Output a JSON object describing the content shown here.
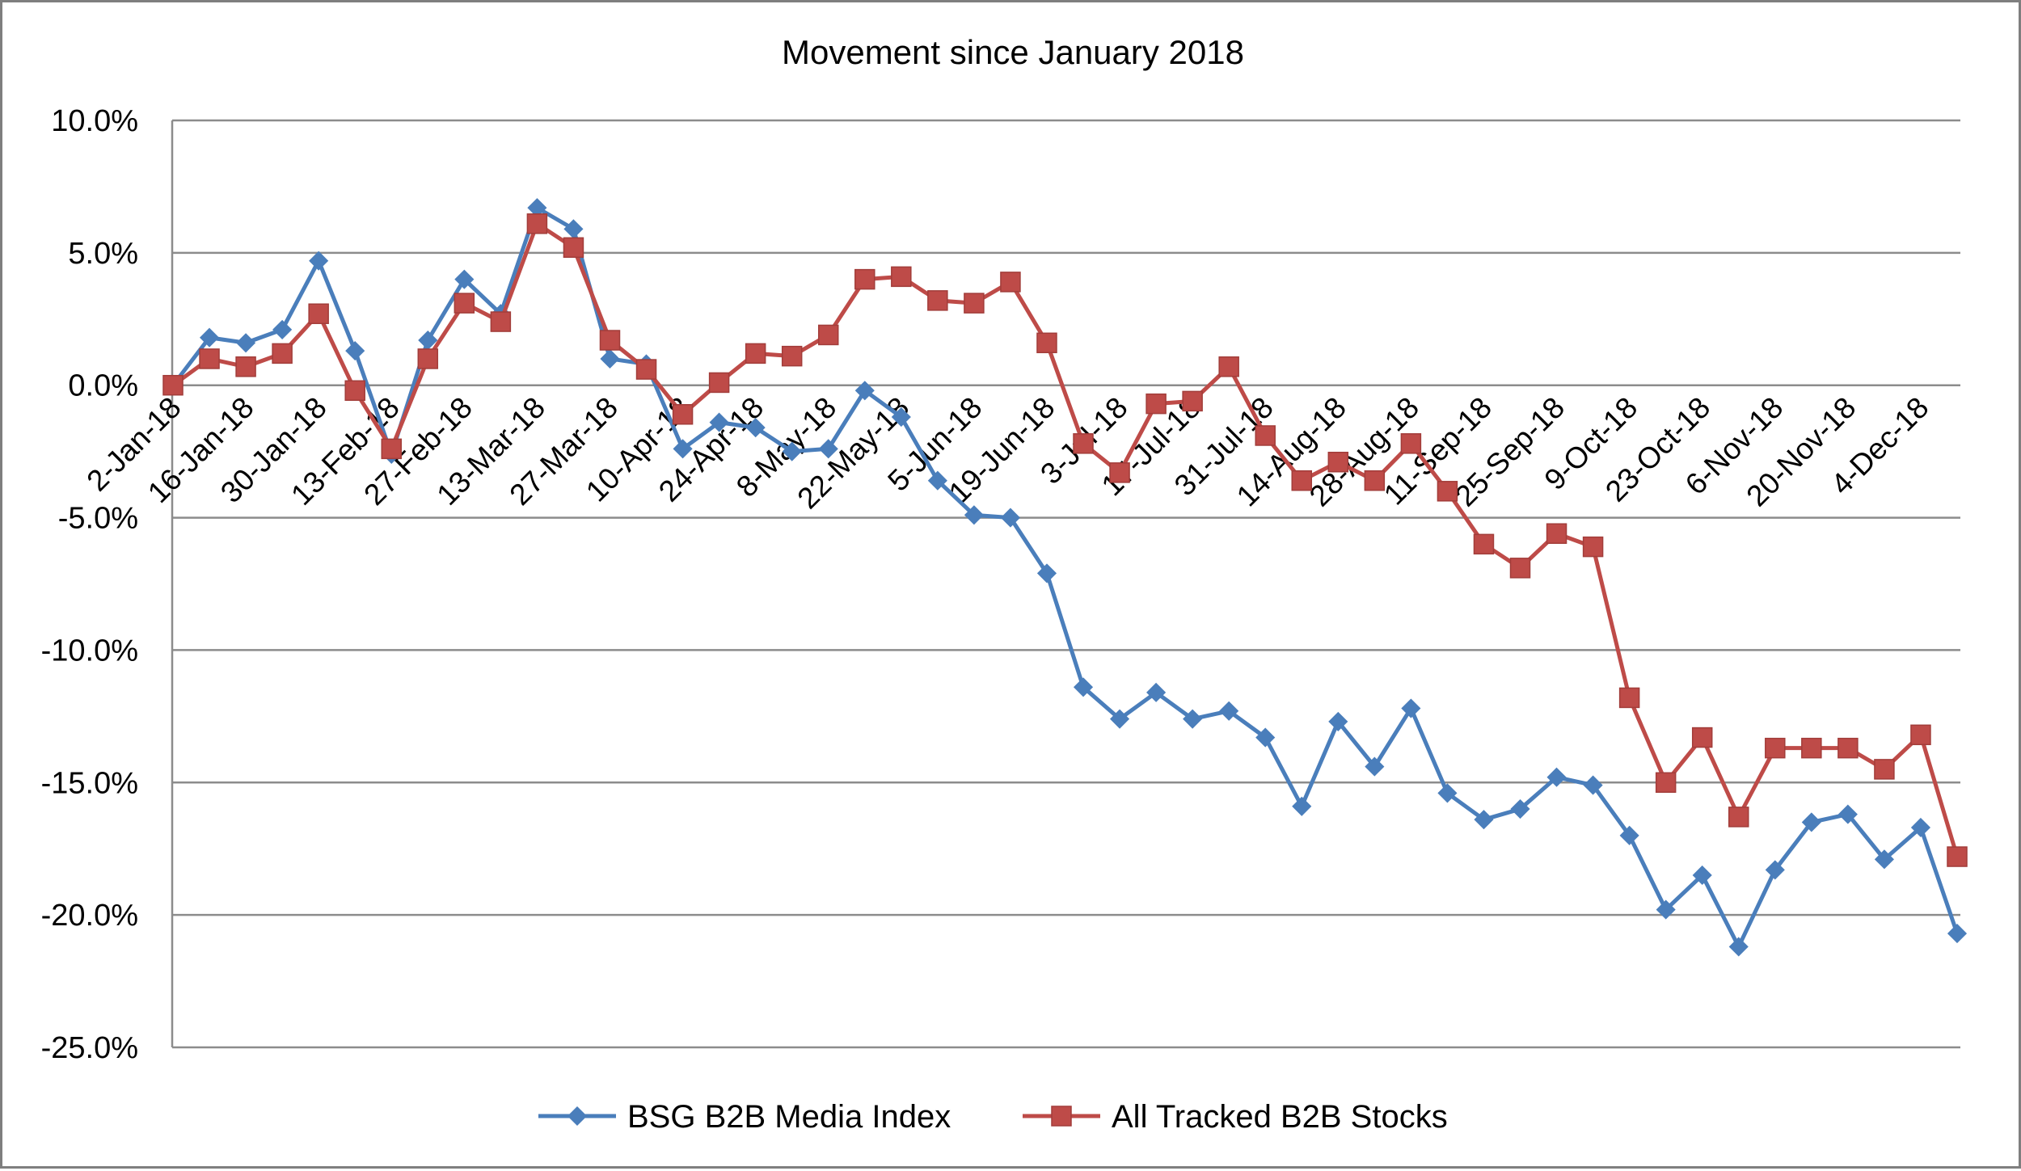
{
  "chart_data": {
    "type": "line",
    "title": "Movement since January 2018",
    "xlabel": "",
    "ylabel": "",
    "ylim": [
      -25,
      10
    ],
    "yticks": [
      10,
      5,
      0,
      -5,
      -10,
      -15,
      -20,
      -25
    ],
    "ytick_labels": [
      "10.0%",
      "5.0%",
      "0.0%",
      "-5.0%",
      "-10.0%",
      "-15.0%",
      "-20.0%",
      "-25.0%"
    ],
    "grid": true,
    "legend_position": "bottom",
    "x_tick_labels": [
      "2-Jan-18",
      "16-Jan-18",
      "30-Jan-18",
      "13-Feb-18",
      "27-Feb-18",
      "13-Mar-18",
      "27-Mar-18",
      "10-Apr-18",
      "24-Apr-18",
      "8-May-18",
      "22-May-18",
      "5-Jun-18",
      "19-Jun-18",
      "3-Jul-18",
      "17-Jul-18",
      "31-Jul-18",
      "14-Aug-18",
      "28-Aug-18",
      "11-Sep-18",
      "25-Sep-18",
      "9-Oct-18",
      "23-Oct-18",
      "6-Nov-18",
      "20-Nov-18",
      "4-Dec-18"
    ],
    "series": [
      {
        "name": "BSG B2B Media Index",
        "color": "#4a7ebb",
        "marker": "diamond",
        "values": [
          0.0,
          1.8,
          1.6,
          2.1,
          4.7,
          1.3,
          -2.6,
          1.7,
          4.0,
          2.7,
          6.7,
          5.9,
          1.0,
          0.8,
          -2.4,
          -1.4,
          -1.6,
          -2.5,
          -2.4,
          -0.2,
          -1.2,
          -3.6,
          -4.9,
          -5.0,
          -7.1,
          -11.4,
          -12.6,
          -11.6,
          -12.6,
          -12.3,
          -13.3,
          -15.9,
          -12.7,
          -14.4,
          -12.2,
          -15.4,
          -16.4,
          -16.0,
          -14.8,
          -15.1,
          -17.0,
          -19.8,
          -18.5,
          -21.2,
          -18.3,
          -16.5,
          -16.2,
          -17.9,
          -16.7,
          -20.7
        ]
      },
      {
        "name": "All Tracked B2B Stocks",
        "color": "#be4b48",
        "marker": "square",
        "values": [
          0.0,
          1.0,
          0.7,
          1.2,
          2.7,
          -0.2,
          -2.4,
          1.0,
          3.1,
          2.4,
          6.1,
          5.2,
          1.7,
          0.6,
          -1.1,
          0.1,
          1.2,
          1.1,
          1.9,
          4.0,
          4.1,
          3.2,
          3.1,
          3.9,
          1.6,
          -2.2,
          -3.3,
          -0.7,
          -0.6,
          0.7,
          -1.9,
          -3.6,
          -2.9,
          -3.6,
          -2.2,
          -4.0,
          -6.0,
          -6.9,
          -5.6,
          -6.1,
          -11.8,
          -15.0,
          -13.3,
          -16.3,
          -13.7,
          -13.7,
          -13.7,
          -14.5,
          -13.2,
          -17.8
        ]
      }
    ]
  }
}
